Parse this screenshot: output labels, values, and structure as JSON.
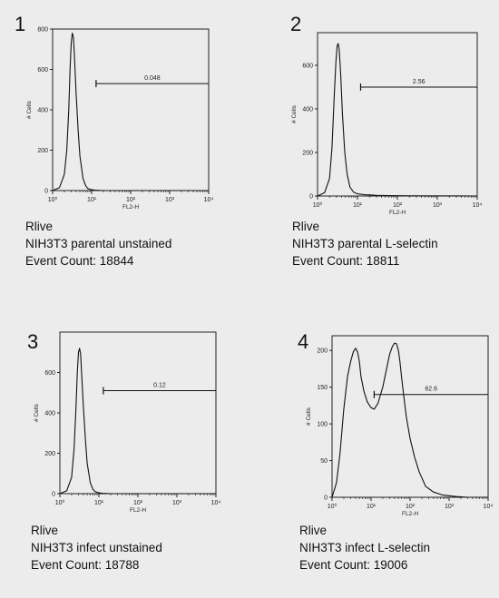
{
  "chart_data": [
    {
      "type": "line",
      "panel_number": "1",
      "x_scale": "log",
      "xlim": [
        1,
        10000
      ],
      "ylim": [
        0,
        800
      ],
      "yticks": [
        "0",
        "200",
        "400",
        "600",
        "800"
      ],
      "xticks": [
        "10⁰",
        "10¹",
        "10²",
        "10³",
        "10⁴"
      ],
      "xlabel": "FL2-H",
      "ylabel": "# Cells",
      "gate": {
        "from": 13,
        "to": 10000,
        "y": 530,
        "label": "0.048"
      },
      "series": [
        {
          "x": [
            1,
            1.5,
            2,
            2.3,
            2.6,
            2.8,
            3.0,
            3.2,
            3.4,
            3.6,
            4.0,
            4.5,
            5,
            6,
            7,
            8,
            10,
            12,
            15,
            20,
            50,
            10000
          ],
          "y": [
            0,
            15,
            80,
            200,
            400,
            600,
            730,
            780,
            760,
            680,
            480,
            300,
            170,
            60,
            25,
            10,
            4,
            2,
            1,
            0,
            0,
            0
          ]
        }
      ],
      "caption": [
        "Rlive",
        "NIH3T3 parental unstained",
        "Event Count: 18844"
      ]
    },
    {
      "type": "line",
      "panel_number": "2",
      "x_scale": "log",
      "xlim": [
        1,
        10000
      ],
      "ylim": [
        0,
        750
      ],
      "yticks": [
        "0",
        "200",
        "400",
        "600"
      ],
      "xticks": [
        "10⁰",
        "10¹",
        "10²",
        "10³",
        "10⁴"
      ],
      "xlabel": "FL2-H",
      "ylabel": "# Cells",
      "gate": {
        "from": 12,
        "to": 10000,
        "y": 500,
        "label": "2.56"
      },
      "series": [
        {
          "x": [
            1,
            1.5,
            2,
            2.3,
            2.6,
            2.9,
            3.1,
            3.3,
            3.5,
            3.8,
            4.2,
            4.8,
            5.5,
            6.5,
            8,
            10,
            12,
            15,
            20,
            30,
            60,
            200,
            10000
          ],
          "y": [
            0,
            15,
            80,
            220,
            450,
            620,
            690,
            700,
            670,
            560,
            380,
            200,
            100,
            40,
            18,
            10,
            8,
            6,
            5,
            3,
            2,
            1,
            0
          ]
        }
      ],
      "caption": [
        "Rlive",
        "NIH3T3 parental L-selectin",
        "Event Count: 18811"
      ]
    },
    {
      "type": "line",
      "panel_number": "3",
      "x_scale": "log",
      "xlim": [
        1,
        10000
      ],
      "ylim": [
        0,
        800
      ],
      "yticks": [
        "0",
        "200",
        "400",
        "600"
      ],
      "xticks": [
        "10⁰",
        "10¹",
        "10²",
        "10³",
        "10⁴"
      ],
      "xlabel": "FL2-H",
      "ylabel": "# Cells",
      "gate": {
        "from": 13,
        "to": 10000,
        "y": 510,
        "label": "0.12"
      },
      "series": [
        {
          "x": [
            1,
            1.5,
            2,
            2.3,
            2.6,
            2.8,
            3.0,
            3.2,
            3.4,
            3.6,
            4.0,
            4.5,
            5,
            6,
            7,
            8,
            10,
            12,
            15,
            20,
            50,
            10000
          ],
          "y": [
            0,
            15,
            80,
            220,
            430,
            600,
            700,
            720,
            690,
            600,
            430,
            270,
            150,
            55,
            22,
            10,
            4,
            2,
            1,
            0,
            0,
            0
          ]
        }
      ],
      "caption": [
        "Rlive",
        "NIH3T3 infect unstained",
        "Event Count: 18788"
      ]
    },
    {
      "type": "line",
      "panel_number": "4",
      "x_scale": "log",
      "xlim": [
        1,
        10000
      ],
      "ylim": [
        0,
        220
      ],
      "yticks": [
        "0",
        "50",
        "100",
        "150",
        "200"
      ],
      "xticks": [
        "10⁰",
        "10¹",
        "10²",
        "10³",
        "10⁴"
      ],
      "xlabel": "FL2-H",
      "ylabel": "# Cells",
      "gate": {
        "from": 12,
        "to": 10000,
        "y": 140,
        "label": "62.6"
      },
      "series": [
        {
          "x": [
            1,
            1.3,
            1.6,
            2,
            2.5,
            3,
            3.5,
            4,
            4.5,
            5,
            5.5,
            6.5,
            8,
            10,
            12,
            15,
            20,
            25,
            30,
            35,
            40,
            45,
            50,
            55,
            60,
            70,
            80,
            100,
            130,
            170,
            250,
            400,
            700,
            1500,
            3000,
            10000
          ],
          "y": [
            0,
            20,
            60,
            120,
            165,
            185,
            198,
            203,
            198,
            185,
            165,
            145,
            130,
            122,
            120,
            128,
            150,
            175,
            195,
            205,
            210,
            209,
            200,
            185,
            165,
            135,
            110,
            80,
            55,
            35,
            15,
            7,
            3,
            1,
            0,
            0
          ]
        }
      ],
      "caption": [
        "Rlive",
        "NIH3T3 infect L-selectin",
        "Event Count: 19006"
      ]
    }
  ]
}
